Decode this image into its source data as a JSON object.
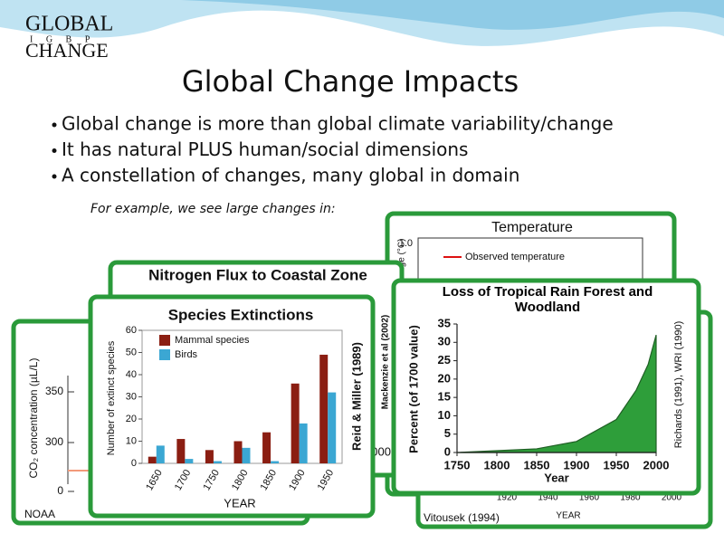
{
  "header": {
    "logo": [
      "GLOBAL",
      "I G B P",
      "CHANGE"
    ],
    "title": "Global Change Impacts"
  },
  "bullets": [
    "Global change is more than global climate variability/change",
    "It has natural PLUS human/social dimensions",
    "A constellation of changes, many global in domain"
  ],
  "note": "For example, we see large changes in:",
  "cards": {
    "temperature": {
      "title": "Temperature",
      "ylabel": "ange (°C)",
      "ytick": "1.0",
      "legend": "Observed temperature"
    },
    "nitrogen": {
      "title": "Nitrogen Flux to Coastal Zone",
      "fragment": "000",
      "citation": "Mackenzie et al  (2002)"
    },
    "co2": {
      "ylabel": "CO₂ concentration (µL/L)",
      "ticks": [
        350,
        300,
        0
      ],
      "source": "NOAA"
    },
    "landuse": {
      "xticks": [
        1920,
        1940,
        1960,
        1980,
        2000
      ],
      "xlabel": "YEAR",
      "citation": "Vitousek (1994)"
    },
    "species": {
      "citation": "Reid & Miller (1989)"
    },
    "forest": {
      "citation": "Richards (1991), WRI (1990)"
    }
  },
  "chart_data": [
    {
      "type": "bar",
      "title": "Species Extinctions",
      "xlabel": "YEAR",
      "ylabel": "Number of extinct species",
      "categories": [
        "1650",
        "1700",
        "1750",
        "1800",
        "1850",
        "1900",
        "1950"
      ],
      "series": [
        {
          "name": "Mammal species",
          "color": "#8b1e12",
          "values": [
            3,
            11,
            6,
            10,
            14,
            36,
            49
          ]
        },
        {
          "name": "Birds",
          "color": "#3ba7d3",
          "values": [
            8,
            2,
            1,
            7,
            1,
            18,
            32
          ]
        }
      ],
      "ylim": [
        0,
        60
      ],
      "yticks": [
        0,
        10,
        20,
        30,
        40,
        50,
        60
      ]
    },
    {
      "type": "area",
      "title": "Loss of Tropical Rain Forest and Woodland",
      "xlabel": "Year",
      "ylabel": "Percent (of 1700 value)",
      "x": [
        1750,
        1800,
        1850,
        1900,
        1950,
        1975,
        1990,
        2000
      ],
      "values": [
        0,
        0.5,
        1,
        3,
        9,
        17,
        24,
        32
      ],
      "color": "#2e9e3a",
      "xlim": [
        1750,
        2000
      ],
      "xticks": [
        1750,
        1800,
        1850,
        1900,
        1950,
        2000
      ],
      "ylim": [
        0,
        35
      ],
      "yticks": [
        0,
        5,
        10,
        15,
        20,
        25,
        30,
        35
      ]
    }
  ]
}
